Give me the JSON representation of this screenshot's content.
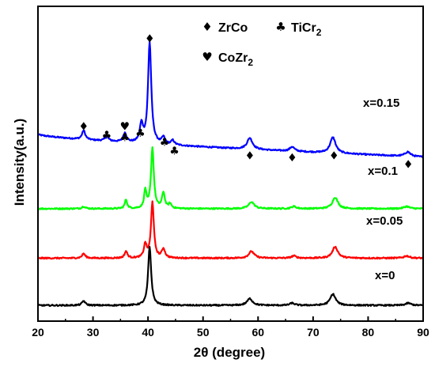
{
  "chart_data": {
    "type": "line",
    "xlabel": "2θ (degree)",
    "ylabel": "Intensity(a.u.)",
    "xlim": [
      20,
      90
    ],
    "xticks": [
      "20",
      "30",
      "40",
      "50",
      "60",
      "70",
      "80",
      "90"
    ],
    "yticks_shown": false,
    "grid": false,
    "legend": {
      "placement": "top-right",
      "entries": [
        {
          "symbol": "♦",
          "symbol_name": "diamond-icon",
          "label": "ZrCo",
          "sub": ""
        },
        {
          "symbol": "♣",
          "symbol_name": "club-icon",
          "label": "TiCr",
          "sub": "2"
        },
        {
          "symbol": "♥",
          "symbol_name": "heart-icon",
          "label": "CoZr",
          "sub": "2"
        }
      ]
    },
    "series": [
      {
        "name": "x=0.15",
        "color": "#0000ff",
        "baseline": 0.8,
        "slope_start": 0.88,
        "slope_end": 0.78,
        "peaks": [
          {
            "x": 28.3,
            "h": 0.04,
            "w": 0.35
          },
          {
            "x": 32.5,
            "h": 0.02,
            "w": 0.4
          },
          {
            "x": 35.8,
            "h": 0.04,
            "w": 0.35
          },
          {
            "x": 38.8,
            "h": 0.08,
            "w": 0.35
          },
          {
            "x": 40.3,
            "h": 0.45,
            "w": 0.35
          },
          {
            "x": 42.8,
            "h": 0.03,
            "w": 0.35
          },
          {
            "x": 44.5,
            "h": 0.02,
            "w": 0.35
          },
          {
            "x": 58.5,
            "h": 0.05,
            "w": 0.6
          },
          {
            "x": 66.2,
            "h": 0.02,
            "w": 0.5
          },
          {
            "x": 73.6,
            "h": 0.07,
            "w": 0.6
          },
          {
            "x": 87.2,
            "h": 0.02,
            "w": 0.6
          }
        ]
      },
      {
        "name": "x=0.1",
        "color": "#00ff00",
        "baseline": 0.55,
        "peaks": [
          {
            "x": 28.3,
            "h": 0.01,
            "w": 0.35
          },
          {
            "x": 36.0,
            "h": 0.04,
            "w": 0.25
          },
          {
            "x": 39.5,
            "h": 0.08,
            "w": 0.25
          },
          {
            "x": 40.8,
            "h": 0.27,
            "w": 0.3
          },
          {
            "x": 42.8,
            "h": 0.07,
            "w": 0.3
          },
          {
            "x": 44.0,
            "h": 0.02,
            "w": 0.3
          },
          {
            "x": 58.8,
            "h": 0.03,
            "w": 0.6
          },
          {
            "x": 66.5,
            "h": 0.01,
            "w": 0.5
          },
          {
            "x": 74.0,
            "h": 0.05,
            "w": 0.6
          },
          {
            "x": 87.0,
            "h": 0.01,
            "w": 0.6
          }
        ]
      },
      {
        "name": "x=0.05",
        "color": "#ff0000",
        "baseline": 0.33,
        "peaks": [
          {
            "x": 28.3,
            "h": 0.02,
            "w": 0.35
          },
          {
            "x": 36.0,
            "h": 0.03,
            "w": 0.3
          },
          {
            "x": 39.5,
            "h": 0.06,
            "w": 0.3
          },
          {
            "x": 40.8,
            "h": 0.25,
            "w": 0.3
          },
          {
            "x": 42.8,
            "h": 0.04,
            "w": 0.35
          },
          {
            "x": 58.8,
            "h": 0.03,
            "w": 0.6
          },
          {
            "x": 66.5,
            "h": 0.01,
            "w": 0.5
          },
          {
            "x": 74.0,
            "h": 0.05,
            "w": 0.6
          },
          {
            "x": 87.0,
            "h": 0.01,
            "w": 0.6
          }
        ]
      },
      {
        "name": "x=0",
        "color": "#000000",
        "baseline": 0.12,
        "peaks": [
          {
            "x": 28.3,
            "h": 0.02,
            "w": 0.35
          },
          {
            "x": 40.3,
            "h": 0.26,
            "w": 0.33
          },
          {
            "x": 58.5,
            "h": 0.03,
            "w": 0.6
          },
          {
            "x": 66.2,
            "h": 0.01,
            "w": 0.5
          },
          {
            "x": 73.6,
            "h": 0.05,
            "w": 0.6
          },
          {
            "x": 87.3,
            "h": 0.01,
            "w": 0.6
          }
        ]
      }
    ],
    "peak_markers": [
      {
        "symbol": "♦",
        "symbol_name": "diamond-icon",
        "x": 28.3,
        "y": 0.9
      },
      {
        "symbol": "♣",
        "symbol_name": "club-icon",
        "x": 32.5,
        "y": 0.86
      },
      {
        "symbol": "♥",
        "symbol_name": "heart-icon",
        "x": 35.8,
        "y": 0.9
      },
      {
        "symbol": "♣",
        "symbol_name": "club-icon",
        "x": 35.8,
        "y": 0.85
      },
      {
        "symbol": "♣",
        "symbol_name": "club-icon",
        "x": 38.6,
        "y": 0.87
      },
      {
        "symbol": "♦",
        "symbol_name": "diamond-icon",
        "x": 40.3,
        "y": 1.29
      },
      {
        "symbol": "♣",
        "symbol_name": "club-icon",
        "x": 43.0,
        "y": 0.83
      },
      {
        "symbol": "♣",
        "symbol_name": "club-icon",
        "x": 44.8,
        "y": 0.79
      },
      {
        "symbol": "♦",
        "symbol_name": "diamond-icon",
        "x": 58.5,
        "y": 0.77
      },
      {
        "symbol": "♦",
        "symbol_name": "diamond-icon",
        "x": 66.2,
        "y": 0.76
      },
      {
        "symbol": "♦",
        "symbol_name": "diamond-icon",
        "x": 73.8,
        "y": 0.77
      },
      {
        "symbol": "♦",
        "symbol_name": "diamond-icon",
        "x": 87.3,
        "y": 0.73
      }
    ],
    "ylim": [
      0.05,
      1.45
    ]
  }
}
